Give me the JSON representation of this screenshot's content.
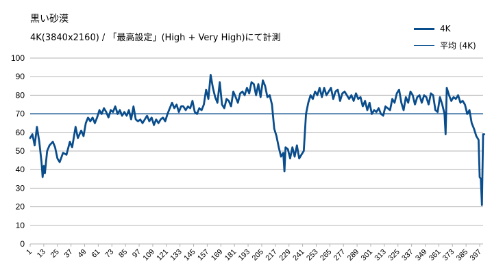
{
  "chart_data": {
    "type": "line",
    "title": "黒い砂漠",
    "subtitle": "4K(3840x2160) / 「最高設定」(High + Very High)にて計測",
    "ylim": [
      0,
      100
    ],
    "yticks": [
      0,
      10,
      20,
      30,
      40,
      50,
      60,
      70,
      80,
      90,
      100
    ],
    "xticks": [
      1,
      13,
      25,
      37,
      49,
      61,
      73,
      85,
      97,
      109,
      121,
      133,
      145,
      157,
      169,
      181,
      193,
      205,
      217,
      229,
      241,
      253,
      265,
      277,
      289,
      301,
      313,
      325,
      337,
      349,
      361,
      373,
      385,
      397
    ],
    "xmax": 400,
    "grid": "horizontal",
    "legend_position": "top-right",
    "series": [
      {
        "name": "4K",
        "color": "#0a4d8c",
        "points": [
          [
            1,
            57
          ],
          [
            3,
            59
          ],
          [
            5,
            53
          ],
          [
            7,
            63
          ],
          [
            9,
            55
          ],
          [
            11,
            44
          ],
          [
            12,
            36
          ],
          [
            13,
            42
          ],
          [
            14,
            38
          ],
          [
            16,
            50
          ],
          [
            18,
            53
          ],
          [
            21,
            55
          ],
          [
            23,
            52
          ],
          [
            25,
            46
          ],
          [
            27,
            44
          ],
          [
            30,
            49
          ],
          [
            33,
            48
          ],
          [
            36,
            55
          ],
          [
            38,
            52
          ],
          [
            41,
            63
          ],
          [
            43,
            57
          ],
          [
            46,
            61
          ],
          [
            48,
            58
          ],
          [
            50,
            65
          ],
          [
            52,
            68
          ],
          [
            54,
            66
          ],
          [
            56,
            68
          ],
          [
            58,
            65
          ],
          [
            60,
            68
          ],
          [
            62,
            72
          ],
          [
            64,
            70
          ],
          [
            66,
            73
          ],
          [
            68,
            71
          ],
          [
            70,
            68
          ],
          [
            72,
            72
          ],
          [
            74,
            71
          ],
          [
            76,
            74
          ],
          [
            78,
            70
          ],
          [
            80,
            72
          ],
          [
            82,
            69
          ],
          [
            84,
            71
          ],
          [
            86,
            69
          ],
          [
            88,
            72
          ],
          [
            90,
            67
          ],
          [
            92,
            74
          ],
          [
            94,
            67
          ],
          [
            96,
            66
          ],
          [
            98,
            67
          ],
          [
            100,
            65
          ],
          [
            102,
            67
          ],
          [
            104,
            69
          ],
          [
            106,
            66
          ],
          [
            108,
            68
          ],
          [
            110,
            64
          ],
          [
            112,
            67
          ],
          [
            114,
            65
          ],
          [
            116,
            67
          ],
          [
            118,
            68
          ],
          [
            120,
            66
          ],
          [
            122,
            70
          ],
          [
            124,
            73
          ],
          [
            126,
            76
          ],
          [
            128,
            73
          ],
          [
            130,
            75
          ],
          [
            132,
            71
          ],
          [
            134,
            74
          ],
          [
            136,
            74
          ],
          [
            138,
            72
          ],
          [
            140,
            74
          ],
          [
            142,
            73
          ],
          [
            144,
            77
          ],
          [
            146,
            71
          ],
          [
            148,
            70
          ],
          [
            150,
            73
          ],
          [
            152,
            72
          ],
          [
            154,
            75
          ],
          [
            156,
            83
          ],
          [
            158,
            78
          ],
          [
            160,
            91
          ],
          [
            162,
            84
          ],
          [
            164,
            79
          ],
          [
            166,
            76
          ],
          [
            168,
            87
          ],
          [
            170,
            75
          ],
          [
            172,
            73
          ],
          [
            174,
            78
          ],
          [
            176,
            77
          ],
          [
            178,
            74
          ],
          [
            180,
            82
          ],
          [
            182,
            79
          ],
          [
            184,
            76
          ],
          [
            186,
            81
          ],
          [
            188,
            82
          ],
          [
            190,
            80
          ],
          [
            192,
            84
          ],
          [
            194,
            81
          ],
          [
            196,
            87
          ],
          [
            198,
            86
          ],
          [
            200,
            80
          ],
          [
            202,
            86
          ],
          [
            204,
            79
          ],
          [
            206,
            88
          ],
          [
            208,
            85
          ],
          [
            210,
            79
          ],
          [
            212,
            80
          ],
          [
            214,
            75
          ],
          [
            216,
            62
          ],
          [
            218,
            58
          ],
          [
            220,
            52
          ],
          [
            222,
            47
          ],
          [
            224,
            49
          ],
          [
            225,
            39
          ],
          [
            226,
            52
          ],
          [
            228,
            51
          ],
          [
            230,
            46
          ],
          [
            232,
            52
          ],
          [
            234,
            47
          ],
          [
            236,
            53
          ],
          [
            238,
            46
          ],
          [
            240,
            48
          ],
          [
            242,
            50
          ],
          [
            244,
            70
          ],
          [
            246,
            76
          ],
          [
            248,
            80
          ],
          [
            250,
            78
          ],
          [
            252,
            82
          ],
          [
            254,
            80
          ],
          [
            256,
            84
          ],
          [
            258,
            79
          ],
          [
            260,
            84
          ],
          [
            262,
            80
          ],
          [
            264,
            82
          ],
          [
            266,
            84
          ],
          [
            268,
            78
          ],
          [
            270,
            82
          ],
          [
            272,
            83
          ],
          [
            274,
            77
          ],
          [
            276,
            81
          ],
          [
            278,
            82
          ],
          [
            280,
            80
          ],
          [
            282,
            78
          ],
          [
            284,
            80
          ],
          [
            286,
            77
          ],
          [
            288,
            81
          ],
          [
            290,
            78
          ],
          [
            292,
            79
          ],
          [
            294,
            74
          ],
          [
            296,
            77
          ],
          [
            298,
            72
          ],
          [
            300,
            76
          ],
          [
            302,
            70
          ],
          [
            304,
            72
          ],
          [
            306,
            71
          ],
          [
            308,
            73
          ],
          [
            310,
            70
          ],
          [
            312,
            69
          ],
          [
            314,
            74
          ],
          [
            316,
            73
          ],
          [
            318,
            72
          ],
          [
            320,
            78
          ],
          [
            322,
            76
          ],
          [
            324,
            81
          ],
          [
            326,
            83
          ],
          [
            328,
            76
          ],
          [
            330,
            72
          ],
          [
            332,
            79
          ],
          [
            334,
            76
          ],
          [
            336,
            82
          ],
          [
            338,
            80
          ],
          [
            340,
            75
          ],
          [
            342,
            79
          ],
          [
            344,
            80
          ],
          [
            346,
            76
          ],
          [
            348,
            80
          ],
          [
            350,
            79
          ],
          [
            352,
            75
          ],
          [
            354,
            81
          ],
          [
            356,
            80
          ],
          [
            358,
            72
          ],
          [
            360,
            71
          ],
          [
            362,
            79
          ],
          [
            364,
            75
          ],
          [
            366,
            70
          ],
          [
            367,
            59
          ],
          [
            368,
            84
          ],
          [
            370,
            80
          ],
          [
            372,
            77
          ],
          [
            374,
            79
          ],
          [
            376,
            78
          ],
          [
            378,
            80
          ],
          [
            380,
            76
          ],
          [
            382,
            77
          ],
          [
            384,
            75
          ],
          [
            386,
            70
          ],
          [
            388,
            72
          ],
          [
            390,
            65
          ],
          [
            392,
            62
          ],
          [
            394,
            58
          ],
          [
            396,
            56
          ],
          [
            397,
            36
          ],
          [
            398,
            35
          ],
          [
            399,
            21
          ],
          [
            400,
            59
          ],
          [
            401,
            59
          ]
        ]
      },
      {
        "name": "平均 (4K)",
        "color": "#0a4d8c",
        "constant": 70
      }
    ]
  }
}
